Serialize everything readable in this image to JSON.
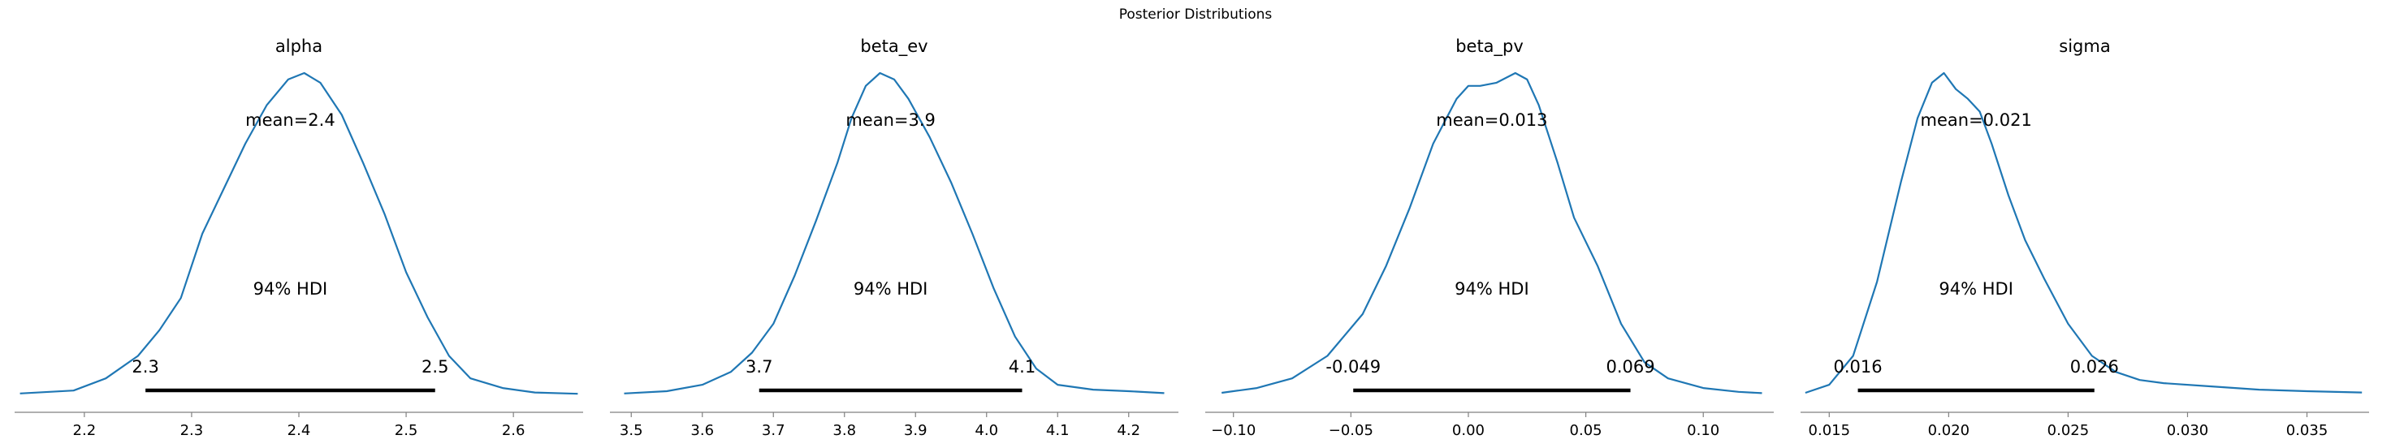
{
  "suptitle": "Posterior Distributions",
  "colors": {
    "line": "#1f77b4",
    "hdi": "#000000",
    "axis": "#808080",
    "text": "#000000"
  },
  "chart_data": [
    {
      "type": "area",
      "title": "alpha",
      "mean_label": "mean=2.4",
      "hdi_label": "94% HDI",
      "hdi": [
        2.257,
        2.527
      ],
      "hdi_tick_labels": [
        "2.3",
        "2.5"
      ],
      "xlim": [
        2.135,
        2.665
      ],
      "xticks": [
        2.2,
        2.3,
        2.4,
        2.5,
        2.6
      ],
      "xtick_labels": [
        "2.2",
        "2.3",
        "2.4",
        "2.5",
        "2.6"
      ],
      "density": {
        "x": [
          2.14,
          2.19,
          2.22,
          2.25,
          2.27,
          2.29,
          2.31,
          2.33,
          2.35,
          2.37,
          2.39,
          2.405,
          2.42,
          2.44,
          2.46,
          2.48,
          2.5,
          2.52,
          2.54,
          2.56,
          2.59,
          2.62,
          2.66
        ],
        "y": [
          0.003,
          0.012,
          0.05,
          0.12,
          0.2,
          0.3,
          0.5,
          0.64,
          0.78,
          0.9,
          0.98,
          1.0,
          0.97,
          0.87,
          0.72,
          0.56,
          0.38,
          0.24,
          0.12,
          0.05,
          0.02,
          0.006,
          0.002
        ]
      }
    },
    {
      "type": "area",
      "title": "beta_ev",
      "mean_label": "mean=3.9",
      "hdi_label": "94% HDI",
      "hdi": [
        3.68,
        4.05
      ],
      "hdi_tick_labels": [
        "3.7",
        "4.1"
      ],
      "xlim": [
        3.47,
        4.27
      ],
      "xticks": [
        3.5,
        3.6,
        3.7,
        3.8,
        3.9,
        4.0,
        4.1,
        4.2
      ],
      "xtick_labels": [
        "3.5",
        "3.6",
        "3.7",
        "3.8",
        "3.9",
        "4.0",
        "4.1",
        "4.2"
      ],
      "density": {
        "x": [
          3.49,
          3.55,
          3.6,
          3.64,
          3.67,
          3.7,
          3.73,
          3.76,
          3.79,
          3.81,
          3.83,
          3.85,
          3.87,
          3.89,
          3.92,
          3.95,
          3.98,
          4.01,
          4.04,
          4.07,
          4.1,
          4.15,
          4.2,
          4.25
        ],
        "y": [
          0.003,
          0.01,
          0.03,
          0.07,
          0.13,
          0.22,
          0.37,
          0.54,
          0.72,
          0.86,
          0.96,
          1.0,
          0.98,
          0.92,
          0.8,
          0.66,
          0.5,
          0.33,
          0.18,
          0.08,
          0.03,
          0.015,
          0.01,
          0.004
        ]
      }
    },
    {
      "type": "area",
      "title": "beta_pv",
      "mean_label": "mean=0.013",
      "hdi_label": "94% HDI",
      "hdi": [
        -0.049,
        0.069
      ],
      "hdi_tick_labels": [
        "-0.049",
        "0.069"
      ],
      "xlim": [
        -0.112,
        0.13
      ],
      "xticks": [
        -0.1,
        -0.05,
        0.0,
        0.05,
        0.1
      ],
      "xtick_labels": [
        "−0.10",
        "−0.05",
        "0.00",
        "0.05",
        "0.10"
      ],
      "density": {
        "x": [
          -0.105,
          -0.09,
          -0.075,
          -0.06,
          -0.045,
          -0.035,
          -0.025,
          -0.015,
          -0.005,
          0.0,
          0.005,
          0.012,
          0.02,
          0.025,
          0.03,
          0.038,
          0.045,
          0.055,
          0.065,
          0.075,
          0.085,
          0.1,
          0.115,
          0.125
        ],
        "y": [
          0.005,
          0.02,
          0.05,
          0.12,
          0.25,
          0.4,
          0.58,
          0.78,
          0.92,
          0.96,
          0.96,
          0.97,
          1.0,
          0.98,
          0.9,
          0.72,
          0.55,
          0.4,
          0.22,
          0.1,
          0.05,
          0.02,
          0.008,
          0.004
        ]
      }
    },
    {
      "type": "area",
      "title": "sigma",
      "mean_label": "mean=0.021",
      "hdi_label": "94% HDI",
      "hdi": [
        0.0162,
        0.0261
      ],
      "hdi_tick_labels": [
        "0.016",
        "0.026"
      ],
      "xlim": [
        0.0138,
        0.0376
      ],
      "xticks": [
        0.015,
        0.02,
        0.025,
        0.03,
        0.035
      ],
      "xtick_labels": [
        "0.015",
        "0.020",
        "0.025",
        "0.030",
        "0.035"
      ],
      "density": {
        "x": [
          0.014,
          0.015,
          0.016,
          0.017,
          0.018,
          0.0187,
          0.0193,
          0.0198,
          0.0203,
          0.0208,
          0.0213,
          0.0218,
          0.0225,
          0.0232,
          0.024,
          0.025,
          0.026,
          0.027,
          0.028,
          0.029,
          0.031,
          0.033,
          0.035,
          0.0373
        ],
        "y": [
          0.005,
          0.03,
          0.12,
          0.35,
          0.66,
          0.86,
          0.97,
          1.0,
          0.95,
          0.92,
          0.88,
          0.78,
          0.62,
          0.48,
          0.36,
          0.22,
          0.12,
          0.07,
          0.045,
          0.035,
          0.025,
          0.015,
          0.01,
          0.006
        ]
      }
    }
  ]
}
